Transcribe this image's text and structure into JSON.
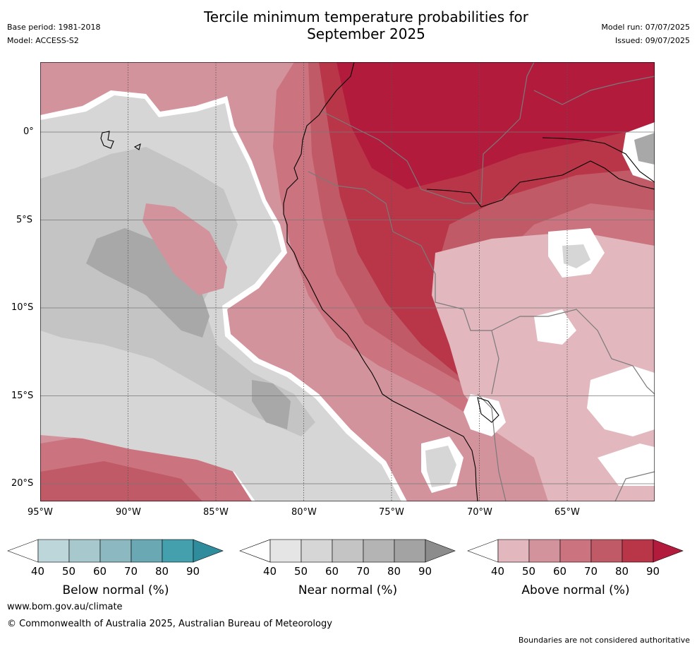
{
  "header": {
    "title_line1": "Tercile minimum temperature probabilities for",
    "title_line2": "September 2025",
    "base_period": "Base period: 1981-2018",
    "model": "Model: ACCESS-S2",
    "model_run": "Model run: 07/07/2025",
    "issued": "Issued: 09/07/2025"
  },
  "map": {
    "lat_labels": [
      "0°",
      "5°S",
      "10°S",
      "15°S",
      "20°S"
    ],
    "lon_labels": [
      "95°W",
      "90°W",
      "85°W",
      "80°W",
      "75°W",
      "70°W",
      "65°W"
    ]
  },
  "colorbars": [
    {
      "label": "Below normal (%)",
      "ticks": [
        "40",
        "50",
        "60",
        "70",
        "80",
        "90"
      ],
      "colors": [
        "#ffffff",
        "#bcd6da",
        "#a7c9ce",
        "#8bb8c1",
        "#6aa8b4",
        "#45a0ae",
        "#2e8c9d"
      ]
    },
    {
      "label": "Near normal (%)",
      "ticks": [
        "40",
        "50",
        "60",
        "70",
        "80",
        "90"
      ],
      "colors": [
        "#ffffff",
        "#e5e5e5",
        "#d6d6d6",
        "#c4c4c4",
        "#b4b4b4",
        "#a3a3a3",
        "#8c8c8c"
      ]
    },
    {
      "label": "Above normal (%)",
      "ticks": [
        "40",
        "50",
        "60",
        "70",
        "80",
        "90"
      ],
      "colors": [
        "#ffffff",
        "#e2b7bd",
        "#d3939c",
        "#cb737f",
        "#c15a67",
        "#b93649",
        "#b31b3d"
      ]
    }
  ],
  "footer": {
    "website": "www.bom.gov.au/climate",
    "copyright": "© Commonwealth of Australia 2025, Australian Bureau of Meteorology",
    "disclaimer": "Boundaries are not considered authoritative"
  }
}
